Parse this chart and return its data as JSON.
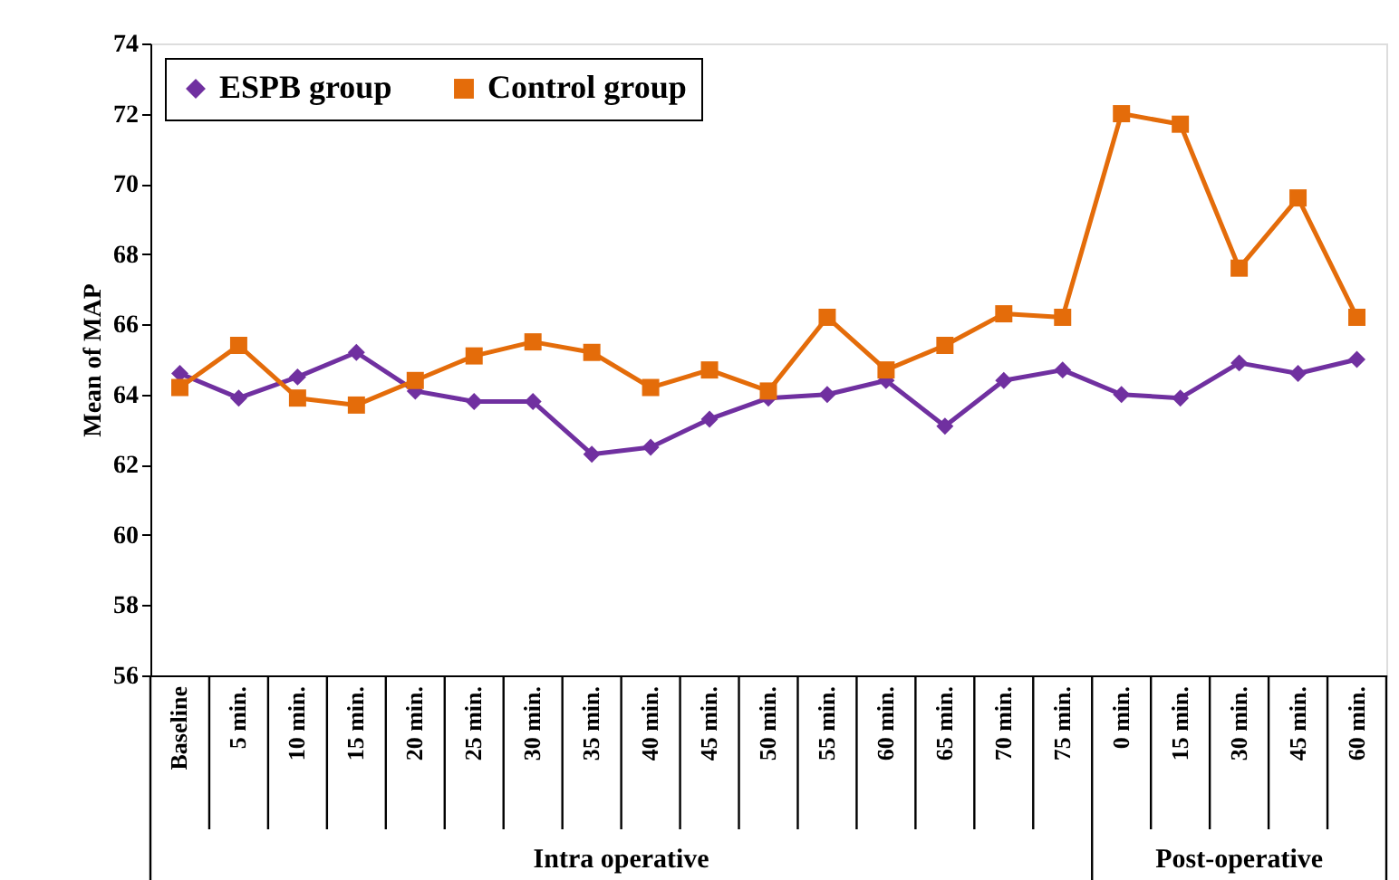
{
  "chart_data": {
    "type": "line",
    "ylabel": "Mean of MAP",
    "categories": [
      "Baseline",
      "5 min.",
      "10 min.",
      "15 min.",
      "20 min.",
      "25 min.",
      "30 min.",
      "35 min.",
      "40 min.",
      "45 min.",
      "50 min.",
      "55 min.",
      "60 min.",
      "65 min.",
      "70 min.",
      "75 min.",
      "0 min.",
      "15 min.",
      "30 min.",
      "45 min.",
      "60 min."
    ],
    "series": [
      {
        "name": "ESPB group",
        "color": "#7030a0",
        "marker": "diamond",
        "values": [
          64.6,
          63.9,
          64.5,
          65.2,
          64.1,
          63.8,
          63.8,
          62.3,
          62.5,
          63.3,
          63.9,
          64.0,
          64.4,
          63.1,
          64.4,
          64.7,
          64.0,
          63.9,
          64.9,
          64.6,
          65.0
        ]
      },
      {
        "name": "Control group",
        "color": "#e46c0a",
        "marker": "square",
        "values": [
          64.2,
          65.4,
          63.9,
          63.7,
          64.4,
          65.1,
          65.5,
          65.2,
          64.2,
          64.7,
          64.1,
          66.2,
          64.7,
          65.4,
          66.3,
          66.2,
          72.0,
          71.7,
          67.6,
          69.6,
          66.2
        ]
      }
    ],
    "ylim": [
      56,
      74
    ],
    "yticks": [
      56,
      58,
      60,
      62,
      64,
      66,
      68,
      70,
      72,
      74
    ],
    "grid": false,
    "legend": "top left",
    "line_style": "solid",
    "annotations": [
      "Intra operative",
      "Post-operative"
    ]
  }
}
